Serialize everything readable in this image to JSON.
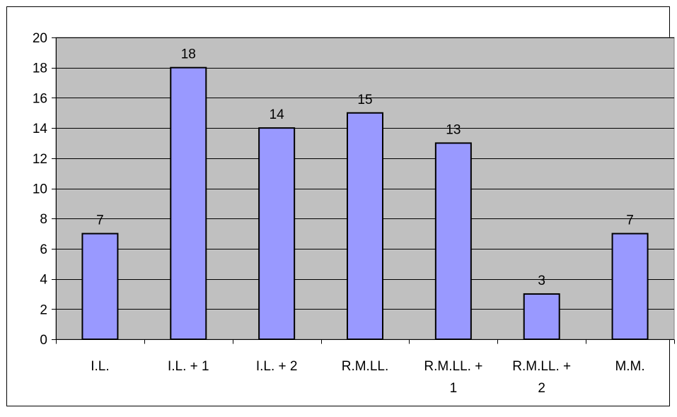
{
  "chart_data": {
    "type": "bar",
    "categories": [
      [
        "I.L."
      ],
      [
        "I.L. + 1"
      ],
      [
        "I.L. + 2"
      ],
      [
        "R.M.LL."
      ],
      [
        "R.M.LL. +",
        "1"
      ],
      [
        "R.M.LL. +",
        "2"
      ],
      [
        "M.M."
      ]
    ],
    "values": [
      7,
      18,
      14,
      15,
      13,
      3,
      7
    ],
    "data_labels": [
      "7",
      "18",
      "14",
      "15",
      "13",
      "3",
      "7"
    ],
    "ylim": [
      0,
      20
    ],
    "yticks": [
      0,
      2,
      4,
      6,
      8,
      10,
      12,
      14,
      16,
      18,
      20
    ],
    "grid": true,
    "legend": "none",
    "colors": {
      "bar_fill": "#9999ff",
      "bar_stroke": "#000000",
      "plot_background": "#c0c0c0",
      "gridline": "#000000",
      "page_background": "#ffffff"
    }
  }
}
